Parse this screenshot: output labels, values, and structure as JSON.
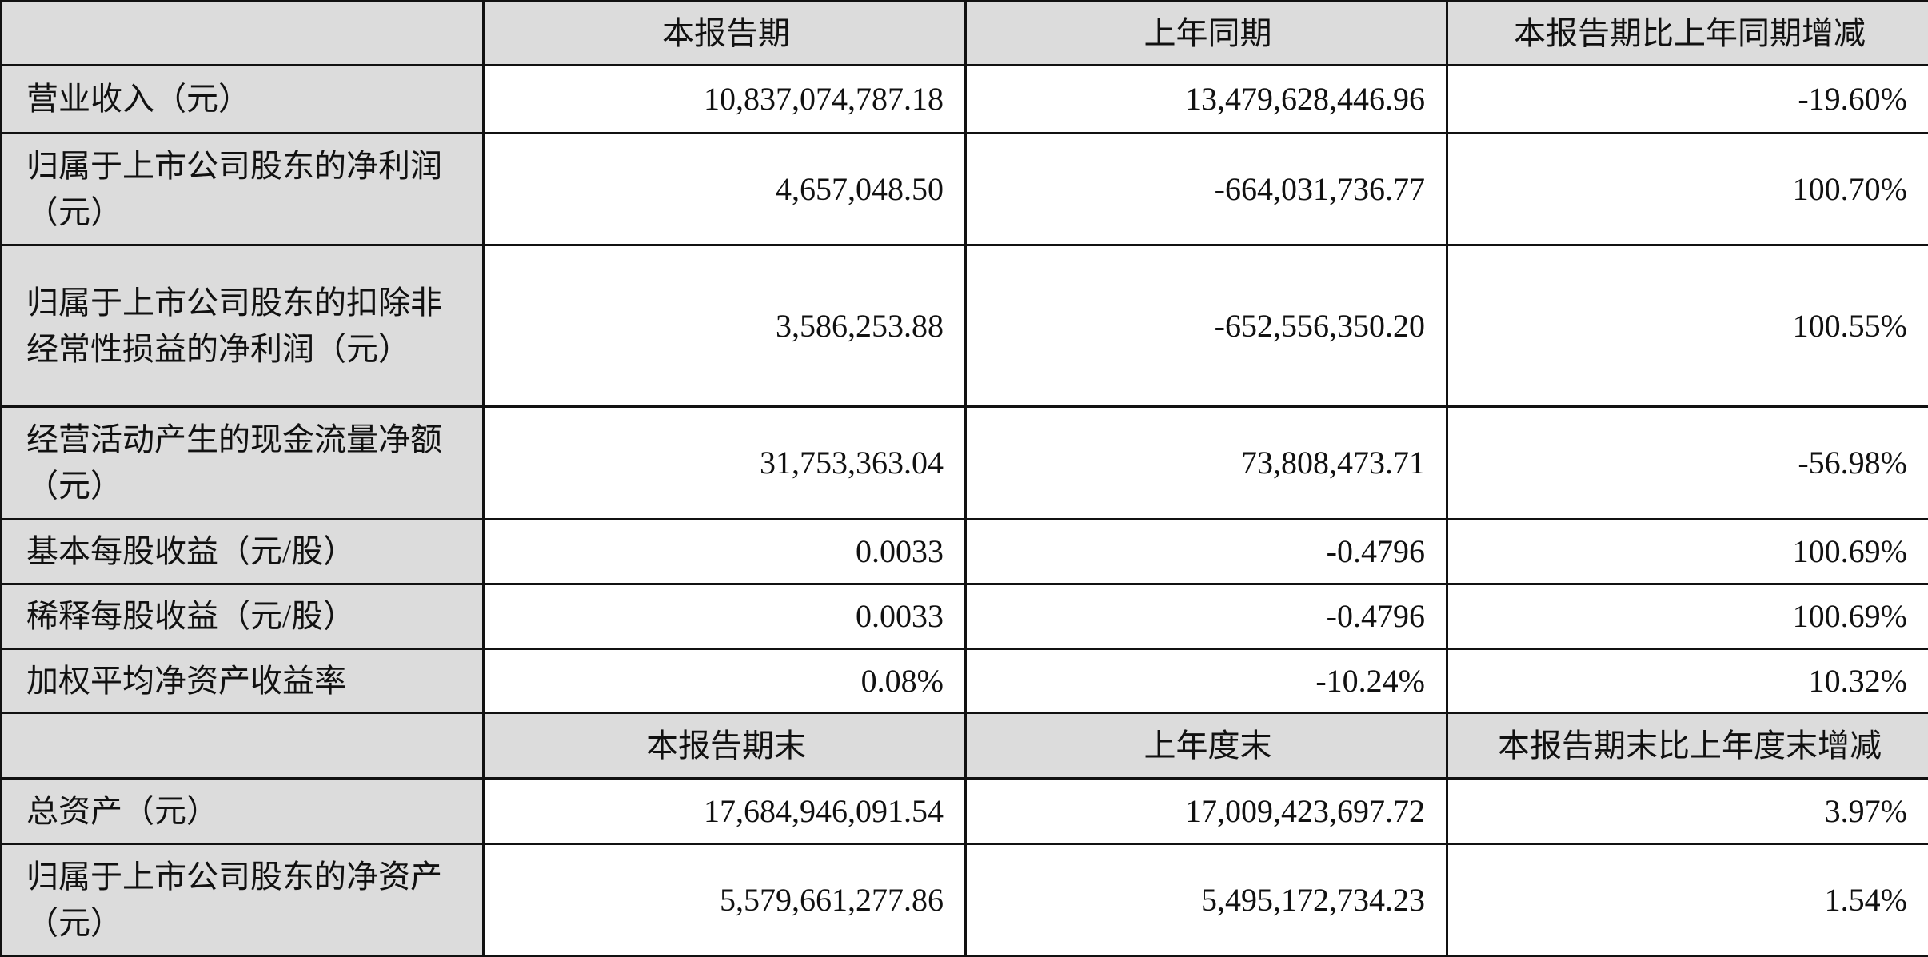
{
  "header1": [
    "",
    "本报告期",
    "上年同期",
    "本报告期比上年同期增减"
  ],
  "rows1": [
    {
      "label": "营业收入（元）",
      "current": "10,837,074,787.18",
      "prior": "13,479,628,446.96",
      "change": "-19.60%"
    },
    {
      "label": "归属于上市公司股东的净利润（元）",
      "current": "4,657,048.50",
      "prior": "-664,031,736.77",
      "change": "100.70%"
    },
    {
      "label": "归属于上市公司股东的扣除非经常性损益的净利润（元）",
      "current": "3,586,253.88",
      "prior": "-652,556,350.20",
      "change": "100.55%"
    },
    {
      "label": "经营活动产生的现金流量净额（元）",
      "current": "31,753,363.04",
      "prior": "73,808,473.71",
      "change": "-56.98%"
    },
    {
      "label": "基本每股收益（元/股）",
      "current": "0.0033",
      "prior": "-0.4796",
      "change": "100.69%"
    },
    {
      "label": "稀释每股收益（元/股）",
      "current": "0.0033",
      "prior": "-0.4796",
      "change": "100.69%"
    },
    {
      "label": "加权平均净资产收益率",
      "current": "0.08%",
      "prior": "-10.24%",
      "change": "10.32%"
    }
  ],
  "header2": [
    "",
    "本报告期末",
    "上年度末",
    "本报告期末比上年度末增减"
  ],
  "rows2": [
    {
      "label": "总资产（元）",
      "current": "17,684,946,091.54",
      "prior": "17,009,423,697.72",
      "change": "3.97%"
    },
    {
      "label": "归属于上市公司股东的净资产（元）",
      "current": "5,579,661,277.86",
      "prior": "5,495,172,734.23",
      "change": "1.54%"
    }
  ]
}
